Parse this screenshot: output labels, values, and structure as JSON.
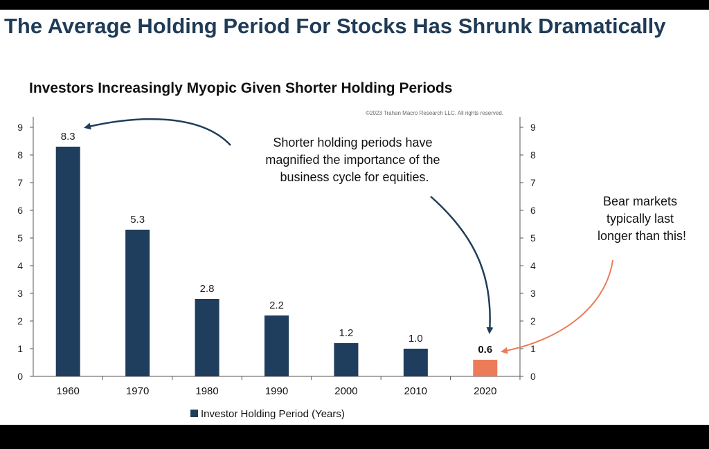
{
  "headline": "The Average Holding Period For Stocks Has Shrunk Dramatically",
  "copyright": "©2023 Trahan Macro Research LLC. All rights reserved.",
  "annotations": {
    "center": [
      "Shorter holding periods have",
      "magnified the importance of the",
      "business cycle for equities."
    ],
    "right": [
      "Bear markets",
      "typically last",
      "longer than this!"
    ]
  },
  "colors": {
    "primary_bar": "#1f3d5c",
    "highlight_bar": "#ec7b58",
    "arrow_dark": "#1f3d5c",
    "arrow_highlight": "#ec7b58",
    "headline": "#1f3b57"
  },
  "chart_data": {
    "type": "bar",
    "title": "Investors Increasingly Myopic Given Shorter Holding Periods",
    "categories": [
      "1960",
      "1970",
      "1980",
      "1990",
      "2000",
      "2010",
      "2020"
    ],
    "series": [
      {
        "name": "Investor Holding Period (Years)",
        "values": [
          8.3,
          5.3,
          2.8,
          2.2,
          1.2,
          1.0,
          0.6
        ]
      }
    ],
    "value_labels": [
      "8.3",
      "5.3",
      "2.8",
      "2.2",
      "1.2",
      "1.0",
      "0.6"
    ],
    "highlight_index": 6,
    "ylim": [
      0,
      9
    ],
    "yticks": [
      0,
      1,
      2,
      3,
      4,
      5,
      6,
      7,
      8,
      9
    ],
    "secondary_yaxis": true,
    "xlabel": "",
    "ylabel": "",
    "grid": false,
    "legend_position": "bottom"
  }
}
